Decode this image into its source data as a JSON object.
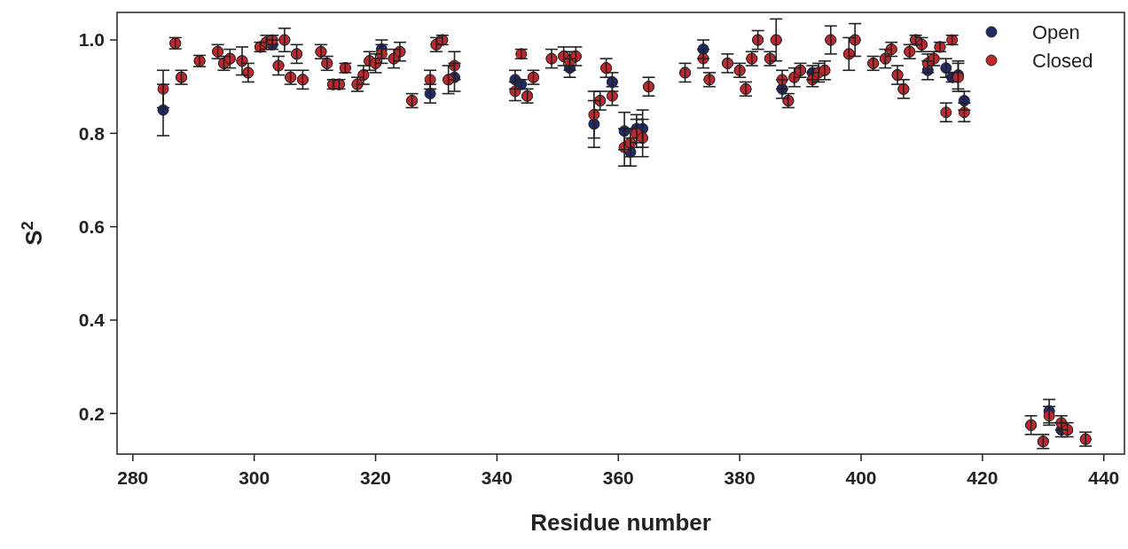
{
  "chart_data": {
    "type": "scatter",
    "xlabel": "Residue number",
    "ylabel": "S$^{2}$",
    "x": [
      285,
      287,
      288,
      291,
      294,
      295,
      296,
      298,
      299,
      301,
      302,
      303,
      304,
      305,
      306,
      307,
      308,
      311,
      312,
      313,
      314,
      315,
      317,
      318,
      319,
      320,
      321,
      323,
      324,
      326,
      329,
      330,
      331,
      332,
      333,
      343,
      344,
      345,
      346,
      349,
      351,
      352,
      353,
      356,
      357,
      358,
      359,
      361,
      362,
      363,
      364,
      365,
      371,
      374,
      375,
      378,
      380,
      381,
      382,
      383,
      385,
      386,
      387,
      388,
      389,
      390,
      392,
      393,
      394,
      395,
      398,
      399,
      402,
      404,
      405,
      406,
      407,
      408,
      409,
      410,
      411,
      412,
      413,
      414,
      415,
      416,
      417,
      428,
      430,
      431,
      433,
      434,
      437
    ],
    "series": [
      {
        "name": "Open",
        "color": "#1f2a6b",
        "values": [
          0.85,
          0.993,
          0.92,
          0.955,
          0.975,
          0.95,
          0.96,
          0.955,
          0.93,
          0.985,
          0.995,
          0.99,
          0.945,
          1.0,
          0.92,
          0.97,
          0.915,
          0.975,
          0.95,
          0.905,
          0.905,
          0.94,
          0.905,
          0.925,
          0.955,
          0.95,
          0.98,
          0.96,
          0.975,
          0.87,
          0.885,
          0.99,
          1.0,
          0.915,
          0.92,
          0.915,
          0.905,
          0.88,
          0.92,
          0.96,
          0.965,
          0.94,
          0.965,
          0.82,
          0.87,
          0.94,
          0.91,
          0.805,
          0.76,
          0.81,
          0.81,
          0.9,
          0.93,
          0.98,
          0.915,
          0.95,
          0.935,
          0.895,
          0.96,
          1.0,
          0.96,
          1.0,
          0.895,
          0.87,
          0.92,
          0.935,
          0.93,
          0.93,
          0.935,
          1.0,
          0.97,
          1.0,
          0.95,
          0.96,
          0.98,
          0.925,
          0.895,
          0.975,
          1.0,
          0.99,
          0.935,
          0.96,
          0.985,
          0.94,
          0.92,
          0.925,
          0.87,
          0.175,
          0.14,
          0.205,
          0.165,
          0.165,
          0.145
        ],
        "errors": [
          0.055,
          0.012,
          0.015,
          0.012,
          0.015,
          0.015,
          0.02,
          0.03,
          0.02,
          0.01,
          0.015,
          0.01,
          0.02,
          0.025,
          0.015,
          0.02,
          0.02,
          0.015,
          0.015,
          0.01,
          0.01,
          0.01,
          0.015,
          0.02,
          0.02,
          0.02,
          0.02,
          0.02,
          0.02,
          0.015,
          0.02,
          0.015,
          0.01,
          0.03,
          0.03,
          0.02,
          0.01,
          0.015,
          0.015,
          0.02,
          0.02,
          0.02,
          0.02,
          0.05,
          0.02,
          0.02,
          0.02,
          0.04,
          0.03,
          0.03,
          0.04,
          0.02,
          0.02,
          0.02,
          0.015,
          0.02,
          0.015,
          0.015,
          0.015,
          0.02,
          0.015,
          0.045,
          0.02,
          0.015,
          0.02,
          0.015,
          0.015,
          0.02,
          0.02,
          0.03,
          0.035,
          0.035,
          0.015,
          0.02,
          0.015,
          0.02,
          0.02,
          0.015,
          0.01,
          0.015,
          0.02,
          0.015,
          0.01,
          0.02,
          0.01,
          0.03,
          0.02,
          0.02,
          0.015,
          0.025,
          0.015,
          0.015,
          0.015
        ]
      },
      {
        "name": "Closed",
        "color": "#c0262b",
        "values": [
          0.895,
          0.993,
          0.92,
          0.955,
          0.975,
          0.95,
          0.96,
          0.955,
          0.93,
          0.985,
          0.995,
          1.0,
          0.945,
          1.0,
          0.92,
          0.97,
          0.915,
          0.975,
          0.95,
          0.905,
          0.905,
          0.94,
          0.905,
          0.925,
          0.955,
          0.95,
          0.97,
          0.96,
          0.975,
          0.87,
          0.915,
          0.99,
          1.0,
          0.915,
          0.945,
          0.89,
          0.97,
          0.88,
          0.92,
          0.96,
          0.965,
          0.955,
          0.965,
          0.84,
          0.87,
          0.94,
          0.88,
          0.77,
          0.78,
          0.8,
          0.79,
          0.9,
          0.93,
          0.96,
          0.915,
          0.95,
          0.935,
          0.895,
          0.96,
          1.0,
          0.96,
          1.0,
          0.915,
          0.87,
          0.92,
          0.935,
          0.915,
          0.93,
          0.935,
          1.0,
          0.97,
          1.0,
          0.95,
          0.96,
          0.98,
          0.925,
          0.895,
          0.975,
          1.0,
          0.99,
          0.95,
          0.96,
          0.985,
          0.845,
          1.0,
          0.92,
          0.845,
          0.175,
          0.14,
          0.195,
          0.18,
          0.165,
          0.145
        ],
        "errors": [
          0.04,
          0.012,
          0.015,
          0.012,
          0.015,
          0.015,
          0.02,
          0.03,
          0.02,
          0.01,
          0.015,
          0.01,
          0.02,
          0.025,
          0.015,
          0.02,
          0.02,
          0.015,
          0.015,
          0.01,
          0.01,
          0.01,
          0.015,
          0.02,
          0.02,
          0.02,
          0.02,
          0.02,
          0.02,
          0.015,
          0.02,
          0.015,
          0.01,
          0.03,
          0.03,
          0.02,
          0.01,
          0.015,
          0.015,
          0.02,
          0.02,
          0.02,
          0.02,
          0.05,
          0.02,
          0.02,
          0.02,
          0.04,
          0.03,
          0.03,
          0.04,
          0.02,
          0.02,
          0.02,
          0.015,
          0.02,
          0.015,
          0.015,
          0.015,
          0.02,
          0.015,
          0.045,
          0.02,
          0.015,
          0.02,
          0.015,
          0.015,
          0.02,
          0.02,
          0.03,
          0.035,
          0.035,
          0.015,
          0.02,
          0.015,
          0.02,
          0.02,
          0.015,
          0.01,
          0.015,
          0.02,
          0.015,
          0.01,
          0.02,
          0.01,
          0.03,
          0.02,
          0.02,
          0.015,
          0.02,
          0.015,
          0.015,
          0.015
        ]
      }
    ],
    "xlim": [
      277.4,
      443.4
    ],
    "xticks": [
      280,
      300,
      320,
      340,
      360,
      380,
      400,
      420,
      440
    ],
    "ylim": [
      0.113,
      1.059
    ],
    "yticks": [
      {
        "value": 0.2,
        "label": "0.2"
      },
      {
        "value": 0.4,
        "label": "0.4"
      },
      {
        "value": 0.6,
        "label": "0.6"
      },
      {
        "value": 0.8,
        "label": "0.8"
      },
      {
        "value": 1,
        "label": "1.0"
      }
    ],
    "marker": "circle",
    "legend": "top right",
    "grid": false
  }
}
